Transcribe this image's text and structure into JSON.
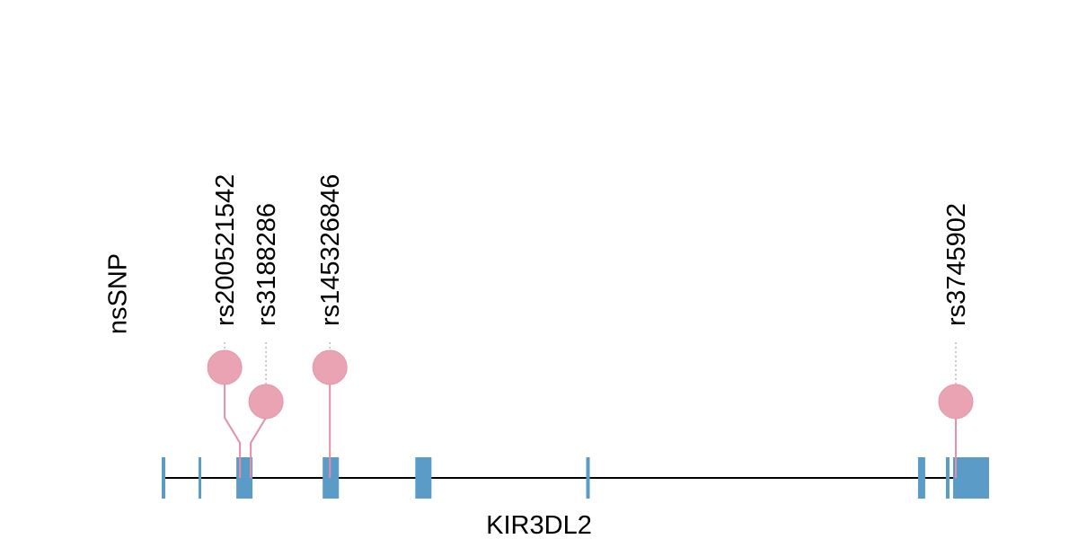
{
  "track_label": "nsSNP",
  "gene": {
    "name": "KIR3DL2",
    "start": 0,
    "end": 920,
    "exons": [
      {
        "start": 0,
        "end": 4
      },
      {
        "start": 41,
        "end": 44
      },
      {
        "start": 83,
        "end": 101
      },
      {
        "start": 179,
        "end": 197
      },
      {
        "start": 282,
        "end": 300
      },
      {
        "start": 472,
        "end": 476
      },
      {
        "start": 841,
        "end": 849
      },
      {
        "start": 872,
        "end": 876
      },
      {
        "start": 880,
        "end": 920
      }
    ]
  },
  "snps": [
    {
      "id": "rs200521542",
      "position": 87,
      "level": 2
    },
    {
      "id": "rs3188286",
      "position": 99,
      "level": 1
    },
    {
      "id": "rs145326846",
      "position": 187,
      "level": 2
    },
    {
      "id": "rs3745902",
      "position": 883,
      "level": 1
    }
  ],
  "colors": {
    "exon": "#5b9bc8",
    "snp": "#eaa3b2",
    "snp_stem": "#e38fa6",
    "backbone": "#000000",
    "guide": "#bbbbbb"
  }
}
